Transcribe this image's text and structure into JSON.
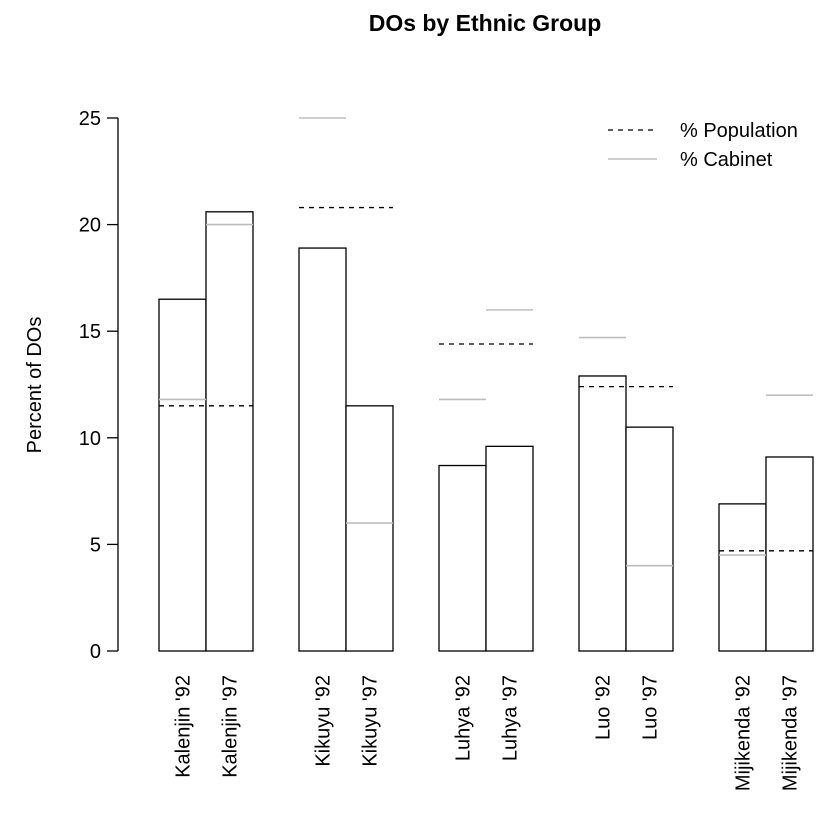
{
  "chart_data": {
    "type": "bar",
    "title": "DOs by Ethnic Group",
    "xlabel": "",
    "ylabel": "Percent of DOs",
    "ylim": [
      0,
      25
    ],
    "yticks": [
      0,
      5,
      10,
      15,
      20,
      25
    ],
    "grid": false,
    "legend_position": "top-right",
    "categories": [
      "Kalenjin '92",
      "Kalenjin '97",
      "Kikuyu '92",
      "Kikuyu '97",
      "Luhya '92",
      "Luhya '97",
      "Luo '92",
      "Luo '97",
      "Mijikenda '92",
      "Mijikenda '97"
    ],
    "groups": [
      "Kalenjin",
      "Kikuyu",
      "Luhya",
      "Luo",
      "Mijikenda"
    ],
    "values": [
      16.5,
      20.6,
      18.9,
      11.5,
      8.7,
      9.6,
      12.9,
      10.5,
      6.9,
      9.1
    ],
    "reference_lines": [
      {
        "name": "% Population",
        "style": "dashed",
        "color": "#000000",
        "per_group": [
          11.5,
          20.8,
          14.4,
          12.4,
          4.7
        ]
      },
      {
        "name": "% Cabinet",
        "style": "solid",
        "color": "#bebebe",
        "per_bar": [
          11.8,
          20.0,
          25.0,
          6.0,
          11.8,
          16.0,
          14.7,
          4.0,
          4.5,
          12.0
        ]
      }
    ],
    "colors": {
      "bar_fill": "#ffffff",
      "bar_stroke": "#000000",
      "population_line": "#000000",
      "cabinet_line": "#bebebe"
    }
  }
}
